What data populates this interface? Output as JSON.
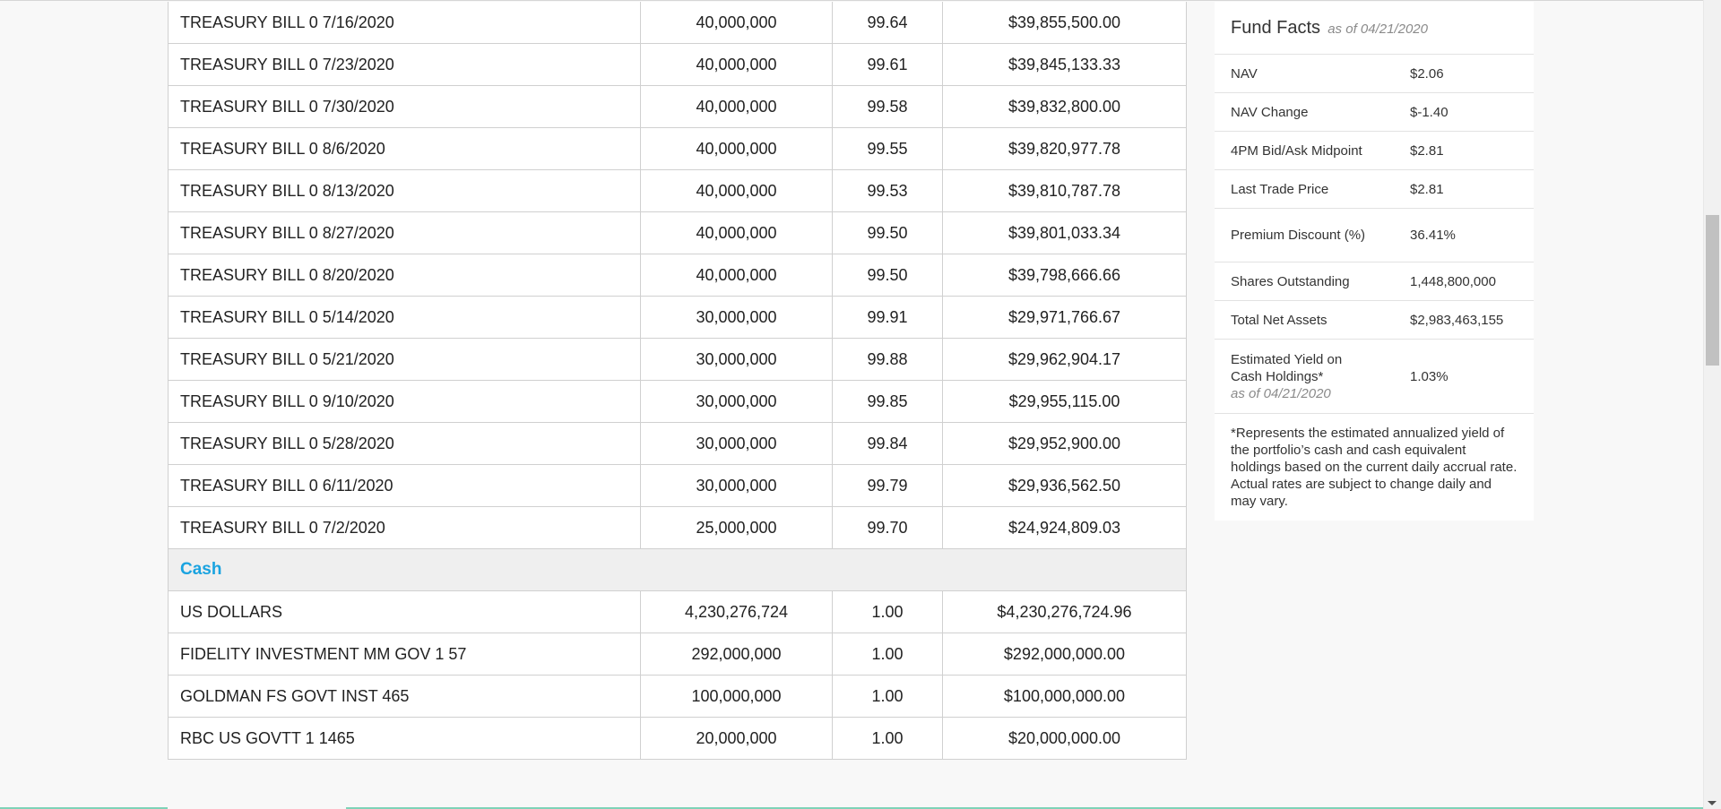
{
  "holdings": {
    "treasury_rows": [
      {
        "name": "TREASURY BILL 0 7/16/2020",
        "shares": "40,000,000",
        "price": "99.64",
        "value": "$39,855,500.00"
      },
      {
        "name": "TREASURY BILL 0 7/23/2020",
        "shares": "40,000,000",
        "price": "99.61",
        "value": "$39,845,133.33"
      },
      {
        "name": "TREASURY BILL 0 7/30/2020",
        "shares": "40,000,000",
        "price": "99.58",
        "value": "$39,832,800.00"
      },
      {
        "name": "TREASURY BILL 0 8/6/2020",
        "shares": "40,000,000",
        "price": "99.55",
        "value": "$39,820,977.78"
      },
      {
        "name": "TREASURY BILL 0 8/13/2020",
        "shares": "40,000,000",
        "price": "99.53",
        "value": "$39,810,787.78"
      },
      {
        "name": "TREASURY BILL 0 8/27/2020",
        "shares": "40,000,000",
        "price": "99.50",
        "value": "$39,801,033.34"
      },
      {
        "name": "TREASURY BILL 0 8/20/2020",
        "shares": "40,000,000",
        "price": "99.50",
        "value": "$39,798,666.66"
      },
      {
        "name": "TREASURY BILL 0 5/14/2020",
        "shares": "30,000,000",
        "price": "99.91",
        "value": "$29,971,766.67"
      },
      {
        "name": "TREASURY BILL 0 5/21/2020",
        "shares": "30,000,000",
        "price": "99.88",
        "value": "$29,962,904.17"
      },
      {
        "name": "TREASURY BILL 0 9/10/2020",
        "shares": "30,000,000",
        "price": "99.85",
        "value": "$29,955,115.00"
      },
      {
        "name": "TREASURY BILL 0 5/28/2020",
        "shares": "30,000,000",
        "price": "99.84",
        "value": "$29,952,900.00"
      },
      {
        "name": "TREASURY BILL 0 6/11/2020",
        "shares": "30,000,000",
        "price": "99.79",
        "value": "$29,936,562.50"
      },
      {
        "name": "TREASURY BILL 0 7/2/2020",
        "shares": "25,000,000",
        "price": "99.70",
        "value": "$24,924,809.03"
      }
    ],
    "cash_section_label": "Cash",
    "cash_rows": [
      {
        "name": "US DOLLARS",
        "shares": "4,230,276,724",
        "price": "1.00",
        "value": "$4,230,276,724.96"
      },
      {
        "name": "FIDELITY INVESTMENT MM GOV 1 57",
        "shares": "292,000,000",
        "price": "1.00",
        "value": "$292,000,000.00"
      },
      {
        "name": "GOLDMAN FS GOVT INST 465",
        "shares": "100,000,000",
        "price": "1.00",
        "value": "$100,000,000.00"
      },
      {
        "name": "RBC US GOVTT 1 1465",
        "shares": "20,000,000",
        "price": "1.00",
        "value": "$20,000,000.00"
      }
    ]
  },
  "fund_facts": {
    "title": "Fund Facts",
    "as_of": "as of 04/21/2020",
    "rows": [
      {
        "label": "NAV",
        "value": "$2.06"
      },
      {
        "label": "NAV Change",
        "value": "$-1.40"
      },
      {
        "label": "4PM Bid/Ask Midpoint",
        "value": "$2.81"
      },
      {
        "label": "Last Trade Price",
        "value": "$2.81"
      },
      {
        "label": "Premium Discount (%)",
        "value": "36.41%"
      },
      {
        "label": "Shares Outstanding",
        "value": "1,448,800,000"
      },
      {
        "label": "Total Net Assets",
        "value": "$2,983,463,155"
      },
      {
        "label": "Estimated Yield on Cash Holdings*",
        "sublabel": "as of 04/21/2020",
        "value": "1.03%"
      }
    ],
    "footnote": "*Represents the estimated annualized yield of the portfolio’s cash and cash equivalent holdings based on the current daily accrual rate. Actual rates are subject to change daily and may vary."
  }
}
